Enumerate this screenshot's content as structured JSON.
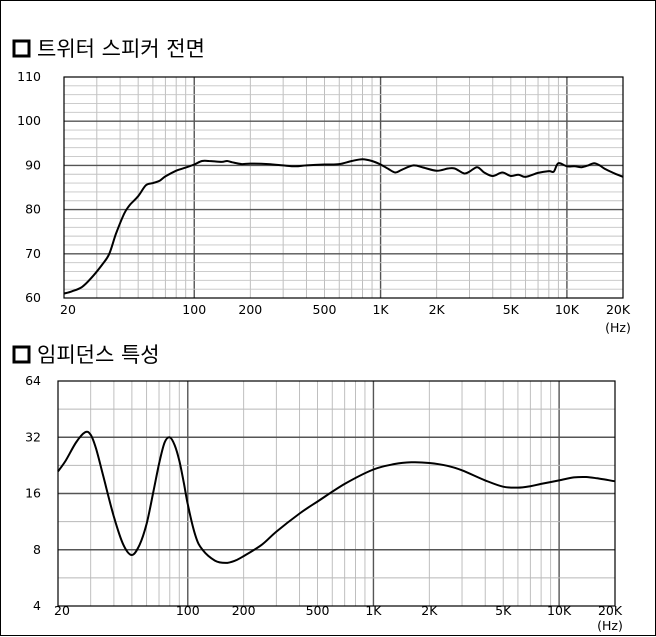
{
  "chart_data": [
    {
      "type": "line",
      "title": "트위터 스피커 전면",
      "x_scale": "log",
      "y_scale": "linear",
      "xlim": [
        20,
        20000
      ],
      "ylim": [
        60,
        110
      ],
      "x_tick_labels": [
        "20",
        "100",
        "200",
        "500",
        "1K",
        "2K",
        "5K",
        "10K",
        "20K"
      ],
      "x_unit": "(Hz)",
      "y_tick_labels": [
        "60",
        "70",
        "80",
        "90",
        "100",
        "110"
      ],
      "grid": true,
      "series": [
        {
          "x": [
            20,
            22,
            25,
            28,
            32,
            35,
            38,
            42,
            45,
            50,
            55,
            60,
            65,
            70,
            80,
            90,
            100,
            110,
            120,
            140,
            150,
            160,
            180,
            200,
            250,
            300,
            350,
            400,
            500,
            600,
            700,
            800,
            900,
            1000,
            1100,
            1200,
            1300,
            1500,
            1700,
            2000,
            2300,
            2500,
            2800,
            3000,
            3300,
            3600,
            4000,
            4500,
            5000,
            5500,
            6000,
            7000,
            8000,
            8500,
            9000,
            10000,
            11000,
            12000,
            13000,
            14000,
            15000,
            16000,
            18000,
            20000
          ],
          "y": [
            61,
            61.5,
            62.5,
            64.5,
            67.5,
            70,
            74.5,
            79,
            81,
            83,
            85.5,
            86,
            86.5,
            87.5,
            88.8,
            89.5,
            90.2,
            91.0,
            91.0,
            90.8,
            91.0,
            90.7,
            90.3,
            90.4,
            90.3,
            90.0,
            89.8,
            90.0,
            90.2,
            90.3,
            91.0,
            91.4,
            91.0,
            90.2,
            89.2,
            88.4,
            89.0,
            90.0,
            89.5,
            88.8,
            89.3,
            89.3,
            88.2,
            88.6,
            89.6,
            88.4,
            87.6,
            88.4,
            87.6,
            87.9,
            87.4,
            88.3,
            88.7,
            88.6,
            90.5,
            89.8,
            89.8,
            89.6,
            90.0,
            90.5,
            90.0,
            89.2,
            88.2,
            87.4
          ]
        }
      ]
    },
    {
      "type": "line",
      "title": "임피던스 특성",
      "x_scale": "log",
      "y_scale": "log",
      "xlim": [
        20,
        20000
      ],
      "ylim": [
        4,
        64
      ],
      "x_tick_labels": [
        "20",
        "100",
        "200",
        "500",
        "1K",
        "2K",
        "5K",
        "10K",
        "20K"
      ],
      "x_unit": "(Hz)",
      "y_tick_labels": [
        "4",
        "8",
        "16",
        "32",
        "64"
      ],
      "grid": true,
      "series": [
        {
          "x": [
            20,
            22,
            25,
            28,
            30,
            32,
            35,
            40,
            45,
            50,
            55,
            60,
            65,
            70,
            75,
            80,
            85,
            90,
            95,
            100,
            110,
            120,
            140,
            160,
            180,
            200,
            250,
            300,
            400,
            500,
            700,
            1000,
            1300,
            1600,
            2000,
            2500,
            3000,
            4000,
            5000,
            6000,
            7000,
            8000,
            10000,
            12000,
            14000,
            16000,
            20000
          ],
          "y": [
            21,
            24,
            30,
            34,
            33,
            28,
            20,
            12,
            8.5,
            7.5,
            8.5,
            11,
            16,
            23,
            30,
            32,
            29,
            24,
            18.5,
            14,
            9.5,
            8.0,
            7.0,
            6.8,
            7.0,
            7.4,
            8.5,
            10,
            12.5,
            14.5,
            18,
            21.5,
            23.0,
            23.5,
            23.3,
            22.5,
            21.3,
            18.8,
            17.4,
            17.2,
            17.5,
            18.0,
            18.8,
            19.5,
            19.6,
            19.3,
            18.6
          ]
        }
      ]
    }
  ]
}
